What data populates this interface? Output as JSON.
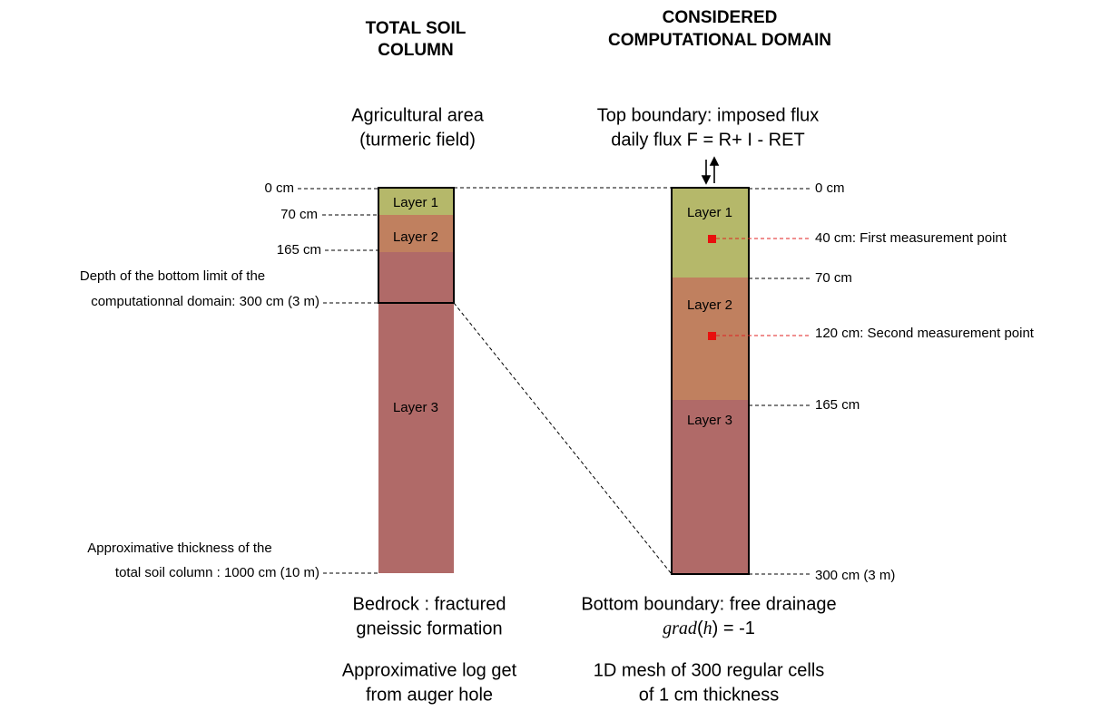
{
  "titles": {
    "left": [
      "TOTAL SOIL",
      "COLUMN"
    ],
    "right": [
      "CONSIDERED",
      "COMPUTATIONAL DOMAIN"
    ]
  },
  "left": {
    "heading": [
      "Agricultural area",
      "(turmeric field)"
    ],
    "layers": [
      "Layer 1",
      "Layer 2",
      "Layer 3"
    ],
    "depths": [
      "0 cm",
      "70 cm",
      "165 cm"
    ],
    "bottom_limit": [
      "Depth of the bottom limit of the",
      "computationnal domain: 300 cm (3 m)"
    ],
    "thickness": [
      "Approximative thickness of the",
      "total soil column : 1000 cm (10 m)"
    ],
    "bedrock": [
      "Bedrock : fractured",
      "gneissic formation"
    ],
    "log": [
      "Approximative log get",
      "from auger hole"
    ]
  },
  "right": {
    "heading": [
      "Top boundary: imposed flux",
      "daily flux F = R+ I - RET"
    ],
    "layers": [
      "Layer 1",
      "Layer 2",
      "Layer 3"
    ],
    "depths": [
      "0 cm",
      "40 cm: First measurement point",
      "70 cm",
      "120 cm: Second measurement point",
      "165 cm",
      "300 cm (3 m)"
    ],
    "bottom_boundary": "Bottom boundary: free drainage",
    "formula": [
      "grad",
      "(",
      "h",
      ") = -1"
    ],
    "mesh": [
      "1D mesh of 300 regular cells",
      "of 1 cm thickness"
    ]
  }
}
